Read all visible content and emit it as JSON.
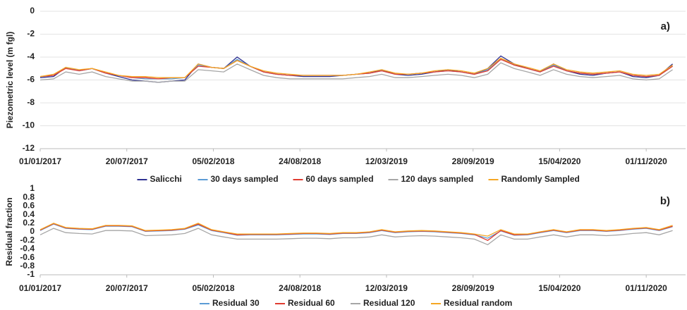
{
  "chart_data": [
    {
      "type": "line",
      "panel_label": "a)",
      "y_label": "Piezometric level (m fgl)",
      "x": [
        "01/01/2017",
        "01/02/2017",
        "01/03/2017",
        "01/04/2017",
        "01/05/2017",
        "01/06/2017",
        "01/07/2017",
        "01/08/2017",
        "01/09/2017",
        "01/10/2017",
        "01/11/2017",
        "01/12/2017",
        "01/01/2018",
        "01/02/2018",
        "01/03/2018",
        "01/04/2018",
        "01/05/2018",
        "01/06/2018",
        "01/07/2018",
        "01/08/2018",
        "01/09/2018",
        "01/10/2018",
        "01/11/2018",
        "01/12/2018",
        "01/01/2019",
        "01/02/2019",
        "01/03/2019",
        "01/04/2019",
        "01/05/2019",
        "01/06/2019",
        "01/07/2019",
        "01/08/2019",
        "01/09/2019",
        "01/10/2019",
        "01/11/2019",
        "01/12/2019",
        "01/01/2020",
        "01/02/2020",
        "01/03/2020",
        "01/04/2020",
        "01/05/2020",
        "01/06/2020",
        "01/07/2020",
        "01/08/2020",
        "01/09/2020",
        "01/10/2020",
        "01/11/2020",
        "01/12/2020",
        "01/01/2021"
      ],
      "xlim": [
        "01/01/2017",
        "31/01/2021"
      ],
      "xticks": [
        "01/01/2017",
        "20/07/2017",
        "05/02/2018",
        "24/08/2018",
        "12/03/2019",
        "28/09/2019",
        "15/04/2020",
        "01/11/2020"
      ],
      "ylim": [
        -12,
        0
      ],
      "yticks": [
        0,
        -2,
        -4,
        -6,
        -8,
        -10,
        -12
      ],
      "grid": true,
      "series": [
        {
          "name": "Salicchi",
          "color": "#2e3192",
          "values": [
            -5.8,
            -5.7,
            -4.9,
            -5.2,
            -5.0,
            -5.4,
            -5.7,
            -6.0,
            -6.1,
            -6.2,
            -6.1,
            -6.0,
            -4.6,
            -4.9,
            -5.0,
            -4.0,
            -4.8,
            -5.3,
            -5.5,
            -5.6,
            -5.7,
            -5.7,
            -5.7,
            -5.6,
            -5.5,
            -5.4,
            -5.1,
            -5.5,
            -5.6,
            -5.5,
            -5.3,
            -5.1,
            -5.3,
            -5.5,
            -5.0,
            -3.9,
            -4.6,
            -5.0,
            -5.3,
            -4.6,
            -5.2,
            -5.5,
            -5.6,
            -5.4,
            -5.3,
            -5.7,
            -5.8,
            -5.6,
            -4.6
          ]
        },
        {
          "name": "30 days sampled",
          "color": "#5b9bd5",
          "values": [
            -5.7,
            -5.6,
            -4.9,
            -5.2,
            -5.0,
            -5.4,
            -5.6,
            -5.8,
            -5.9,
            -5.9,
            -5.9,
            -5.8,
            -4.7,
            -4.9,
            -5.0,
            -4.2,
            -4.8,
            -5.3,
            -5.5,
            -5.6,
            -5.6,
            -5.6,
            -5.6,
            -5.6,
            -5.5,
            -5.4,
            -5.2,
            -5.5,
            -5.5,
            -5.4,
            -5.3,
            -5.2,
            -5.3,
            -5.5,
            -5.1,
            -4.1,
            -4.7,
            -5.0,
            -5.3,
            -4.7,
            -5.2,
            -5.4,
            -5.5,
            -5.4,
            -5.3,
            -5.6,
            -5.7,
            -5.6,
            -4.8
          ]
        },
        {
          "name": "60 days sampled",
          "color": "#e03c31",
          "values": [
            -5.7,
            -5.6,
            -5.0,
            -5.2,
            -5.0,
            -5.4,
            -5.6,
            -5.8,
            -5.8,
            -5.9,
            -5.8,
            -5.8,
            -4.8,
            -4.9,
            -5.0,
            -4.3,
            -4.8,
            -5.3,
            -5.5,
            -5.6,
            -5.6,
            -5.6,
            -5.6,
            -5.6,
            -5.5,
            -5.4,
            -5.2,
            -5.5,
            -5.5,
            -5.4,
            -5.3,
            -5.2,
            -5.3,
            -5.5,
            -5.2,
            -4.2,
            -4.7,
            -5.0,
            -5.3,
            -4.8,
            -5.2,
            -5.4,
            -5.5,
            -5.4,
            -5.3,
            -5.6,
            -5.7,
            -5.6,
            -4.8
          ]
        },
        {
          "name": "120 days sampled",
          "color": "#a6a6a6",
          "values": [
            -6.0,
            -5.9,
            -5.3,
            -5.5,
            -5.3,
            -5.7,
            -5.9,
            -6.1,
            -6.1,
            -6.2,
            -6.1,
            -6.1,
            -5.1,
            -5.2,
            -5.3,
            -4.6,
            -5.1,
            -5.6,
            -5.8,
            -5.9,
            -5.9,
            -5.9,
            -5.9,
            -5.9,
            -5.8,
            -5.7,
            -5.5,
            -5.8,
            -5.8,
            -5.7,
            -5.6,
            -5.5,
            -5.6,
            -5.8,
            -5.5,
            -4.5,
            -5.0,
            -5.3,
            -5.6,
            -5.1,
            -5.5,
            -5.7,
            -5.8,
            -5.7,
            -5.6,
            -5.9,
            -6.0,
            -5.9,
            -5.1
          ]
        },
        {
          "name": "Randomly Sampled",
          "color": "#f5a623",
          "values": [
            -5.7,
            -5.5,
            -4.9,
            -5.1,
            -5.0,
            -5.3,
            -5.6,
            -5.7,
            -5.7,
            -5.8,
            -5.8,
            -5.8,
            -4.6,
            -4.9,
            -5.0,
            -4.3,
            -4.8,
            -5.2,
            -5.4,
            -5.5,
            -5.6,
            -5.6,
            -5.6,
            -5.6,
            -5.5,
            -5.3,
            -5.1,
            -5.4,
            -5.5,
            -5.4,
            -5.2,
            -5.1,
            -5.2,
            -5.4,
            -5.0,
            -4.1,
            -4.6,
            -4.9,
            -5.2,
            -4.6,
            -5.1,
            -5.3,
            -5.4,
            -5.3,
            -5.2,
            -5.5,
            -5.6,
            -5.5,
            -4.7
          ]
        }
      ]
    },
    {
      "type": "line",
      "panel_label": "b)",
      "y_label": "Residual fraction",
      "x": [
        "01/01/2017",
        "01/02/2017",
        "01/03/2017",
        "01/04/2017",
        "01/05/2017",
        "01/06/2017",
        "01/07/2017",
        "01/08/2017",
        "01/09/2017",
        "01/10/2017",
        "01/11/2017",
        "01/12/2017",
        "01/01/2018",
        "01/02/2018",
        "01/03/2018",
        "01/04/2018",
        "01/05/2018",
        "01/06/2018",
        "01/07/2018",
        "01/08/2018",
        "01/09/2018",
        "01/10/2018",
        "01/11/2018",
        "01/12/2018",
        "01/01/2019",
        "01/02/2019",
        "01/03/2019",
        "01/04/2019",
        "01/05/2019",
        "01/06/2019",
        "01/07/2019",
        "01/08/2019",
        "01/09/2019",
        "01/10/2019",
        "01/11/2019",
        "01/12/2019",
        "01/01/2020",
        "01/02/2020",
        "01/03/2020",
        "01/04/2020",
        "01/05/2020",
        "01/06/2020",
        "01/07/2020",
        "01/08/2020",
        "01/09/2020",
        "01/10/2020",
        "01/11/2020",
        "01/12/2020",
        "01/01/2021"
      ],
      "xlim": [
        "01/01/2017",
        "31/01/2021"
      ],
      "xticks": [
        "01/01/2017",
        "20/07/2017",
        "05/02/2018",
        "24/08/2018",
        "12/03/2019",
        "28/09/2019",
        "15/04/2020",
        "01/11/2020"
      ],
      "ylim": [
        -1,
        1
      ],
      "yticks": [
        1,
        0.8,
        0.6,
        0.4,
        0.2,
        0,
        -0.2,
        -0.4,
        -0.6,
        -0.8,
        -1
      ],
      "grid": false,
      "series": [
        {
          "name": "Residual 30",
          "color": "#5b9bd5",
          "values": [
            0.03,
            0.18,
            0.08,
            0.06,
            0.05,
            0.13,
            0.13,
            0.12,
            0.01,
            0.02,
            0.03,
            0.06,
            0.16,
            0.03,
            -0.02,
            -0.08,
            -0.07,
            -0.07,
            -0.07,
            -0.06,
            -0.05,
            -0.05,
            -0.06,
            -0.04,
            -0.04,
            -0.02,
            0.03,
            -0.02,
            0.0,
            0.01,
            0.0,
            -0.02,
            -0.04,
            -0.07,
            -0.15,
            0.02,
            -0.08,
            -0.07,
            -0.02,
            0.03,
            -0.02,
            0.03,
            0.03,
            0.01,
            0.03,
            0.06,
            0.08,
            0.03,
            0.12
          ]
        },
        {
          "name": "Residual 60",
          "color": "#e03c31",
          "values": [
            0.04,
            0.19,
            0.09,
            0.07,
            0.06,
            0.14,
            0.14,
            0.13,
            0.02,
            0.03,
            0.04,
            0.07,
            0.18,
            0.04,
            -0.01,
            -0.07,
            -0.06,
            -0.06,
            -0.06,
            -0.05,
            -0.04,
            -0.04,
            -0.05,
            -0.03,
            -0.03,
            -0.01,
            0.04,
            -0.01,
            0.01,
            0.02,
            0.01,
            -0.01,
            -0.03,
            -0.06,
            -0.2,
            0.03,
            -0.07,
            -0.06,
            -0.01,
            0.04,
            -0.01,
            0.04,
            0.04,
            0.02,
            0.04,
            0.07,
            0.09,
            0.04,
            0.13
          ]
        },
        {
          "name": "Residual 120",
          "color": "#a6a6a6",
          "values": [
            -0.07,
            0.08,
            -0.02,
            -0.04,
            -0.05,
            0.03,
            0.03,
            0.02,
            -0.09,
            -0.08,
            -0.07,
            -0.04,
            0.08,
            -0.07,
            -0.12,
            -0.17,
            -0.17,
            -0.17,
            -0.17,
            -0.16,
            -0.15,
            -0.15,
            -0.16,
            -0.14,
            -0.14,
            -0.12,
            -0.07,
            -0.12,
            -0.1,
            -0.09,
            -0.1,
            -0.12,
            -0.14,
            -0.17,
            -0.3,
            -0.07,
            -0.17,
            -0.17,
            -0.12,
            -0.07,
            -0.12,
            -0.07,
            -0.07,
            -0.09,
            -0.07,
            -0.04,
            -0.02,
            -0.07,
            0.03
          ]
        },
        {
          "name": "Residual random",
          "color": "#f5a623",
          "values": [
            0.05,
            0.2,
            0.1,
            0.08,
            0.07,
            0.15,
            0.15,
            0.14,
            0.03,
            0.04,
            0.05,
            0.08,
            0.2,
            0.05,
            0.0,
            -0.05,
            -0.05,
            -0.05,
            -0.05,
            -0.04,
            -0.03,
            -0.03,
            -0.04,
            -0.02,
            -0.02,
            0.0,
            0.05,
            0.0,
            0.02,
            0.03,
            0.02,
            0.0,
            -0.02,
            -0.05,
            -0.1,
            0.05,
            -0.05,
            -0.05,
            0.0,
            0.05,
            0.0,
            0.05,
            0.05,
            0.03,
            0.05,
            0.08,
            0.1,
            0.05,
            0.15
          ]
        }
      ]
    }
  ]
}
